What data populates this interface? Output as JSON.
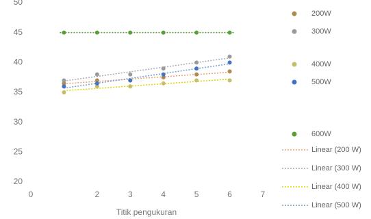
{
  "chart_data": {
    "type": "scatter",
    "x_label": "Titik pengukuran",
    "xlim": [
      0,
      7
    ],
    "xticks": [
      0,
      2,
      3,
      4,
      5,
      6,
      7
    ],
    "ylim": [
      20,
      50
    ],
    "yticks": [
      20,
      25,
      30,
      35,
      40,
      45,
      50
    ],
    "x": [
      1,
      2,
      3,
      4,
      5,
      6
    ],
    "series": [
      {
        "name": "200W",
        "color": "#b08a50",
        "values": [
          36.5,
          37,
          37,
          37.5,
          38,
          38.5
        ],
        "trend_name": "Linear (200 W)",
        "trend_color": "#f0a070"
      },
      {
        "name": "300W",
        "color": "#9a9a9a",
        "values": [
          37,
          38,
          38,
          39,
          40,
          41
        ],
        "trend_name": "Linear (300 W)",
        "trend_color": "#a8a8b8"
      },
      {
        "name": "400W",
        "color": "#c8bd6a",
        "values": [
          35,
          36,
          36,
          36.5,
          37,
          37
        ],
        "trend_name": "Linear (400 W)",
        "trend_color": "#d8d800"
      },
      {
        "name": "500W",
        "color": "#4472c4",
        "values": [
          36,
          36.5,
          37,
          38,
          39,
          40
        ],
        "trend_name": "Linear (500 W)",
        "trend_color": "#6fa0d8"
      },
      {
        "name": "600W",
        "color": "#5a9e3a",
        "values": [
          45,
          45,
          45,
          45,
          45,
          45
        ]
      }
    ]
  }
}
